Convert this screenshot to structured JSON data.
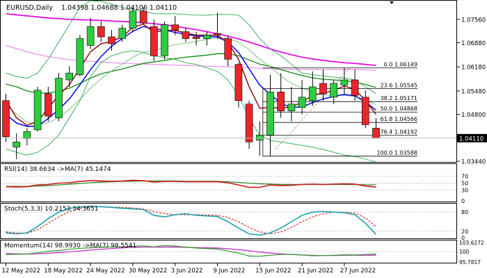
{
  "window": {
    "symbol_label": "EURUSD,Daily",
    "ohlc_label": "1.04398 1.04688 1.04106 1.04110"
  },
  "colors": {
    "bull": "#2ecc40",
    "bear": "#e8262b",
    "magenta_ma": "#e014e0",
    "pink_ma": "#f09af0",
    "green_ma": "#118811",
    "light_green_ma": "#7bc47b",
    "blue_ma": "#1010ee",
    "brown_ma": "#8b1010",
    "bollinger": "#27a84a",
    "rsi_red": "#cc1515",
    "rsi_green": "#2a8a2a",
    "stoch_main": "#1aa0b0",
    "stoch_signal": "#e03030",
    "mom_main": "#2a9a2a",
    "mom_signal": "#c020c0",
    "fib": "#000000"
  },
  "chart_data": {
    "type": "candlestick",
    "title": "EURUSD,Daily",
    "y_range": [
      1.0344,
      1.0808
    ],
    "price_ticks": [
      "1.07560",
      "1.06880",
      "1.06180",
      "1.05480",
      "1.04800",
      "1.04110",
      "1.03440"
    ],
    "current_price": "1.04110",
    "x_tick_labels": [
      "12 May 2022",
      "18 May 2022",
      "24 May 2022",
      "30 May 2022",
      "3 Jun 2022",
      "9 Jun 2022",
      "15 Jun 2022",
      "21 Jun 2022",
      "27 Jun 2022"
    ],
    "x_tick_index": [
      0,
      4,
      8,
      12,
      16,
      20,
      24,
      28,
      32
    ],
    "candles": [
      {
        "o": 1.052,
        "h": 1.054,
        "l": 1.04,
        "c": 1.0415
      },
      {
        "o": 1.0385,
        "h": 1.0425,
        "l": 1.035,
        "c": 1.04
      },
      {
        "o": 1.041,
        "h": 1.044,
        "l": 1.039,
        "c": 1.043
      },
      {
        "o": 1.0435,
        "h": 1.056,
        "l": 1.043,
        "c": 1.055
      },
      {
        "o": 1.054,
        "h": 1.056,
        "l": 1.046,
        "c": 1.0475
      },
      {
        "o": 1.047,
        "h": 1.06,
        "l": 1.046,
        "c": 1.0585
      },
      {
        "o": 1.058,
        "h": 1.062,
        "l": 1.056,
        "c": 1.06
      },
      {
        "o": 1.0595,
        "h": 1.071,
        "l": 1.059,
        "c": 1.07
      },
      {
        "o": 1.068,
        "h": 1.076,
        "l": 1.067,
        "c": 1.0735
      },
      {
        "o": 1.0735,
        "h": 1.075,
        "l": 1.069,
        "c": 1.0705
      },
      {
        "o": 1.0705,
        "h": 1.0725,
        "l": 1.0665,
        "c": 1.0685
      },
      {
        "o": 1.07,
        "h": 1.074,
        "l": 1.069,
        "c": 1.073
      },
      {
        "o": 1.073,
        "h": 1.079,
        "l": 1.072,
        "c": 1.078
      },
      {
        "o": 1.078,
        "h": 1.079,
        "l": 1.074,
        "c": 1.0745
      },
      {
        "o": 1.0735,
        "h": 1.0755,
        "l": 1.0635,
        "c": 1.065
      },
      {
        "o": 1.065,
        "h": 1.075,
        "l": 1.064,
        "c": 1.074
      },
      {
        "o": 1.074,
        "h": 1.0765,
        "l": 1.071,
        "c": 1.0725
      },
      {
        "o": 1.072,
        "h": 1.073,
        "l": 1.069,
        "c": 1.07
      },
      {
        "o": 1.0705,
        "h": 1.072,
        "l": 1.068,
        "c": 1.07
      },
      {
        "o": 1.07,
        "h": 1.072,
        "l": 1.068,
        "c": 1.071
      },
      {
        "o": 1.0715,
        "h": 1.0775,
        "l": 1.07,
        "c": 1.071
      },
      {
        "o": 1.07,
        "h": 1.071,
        "l": 1.062,
        "c": 1.064
      },
      {
        "o": 1.0625,
        "h": 1.063,
        "l": 1.05,
        "c": 1.052
      },
      {
        "o": 1.051,
        "h": 1.052,
        "l": 1.038,
        "c": 1.04
      },
      {
        "o": 1.0405,
        "h": 1.046,
        "l": 1.036,
        "c": 1.042
      },
      {
        "o": 1.042,
        "h": 1.0595,
        "l": 1.036,
        "c": 1.0545
      },
      {
        "o": 1.0545,
        "h": 1.06,
        "l": 1.047,
        "c": 1.049
      },
      {
        "o": 1.049,
        "h": 1.056,
        "l": 1.046,
        "c": 1.051
      },
      {
        "o": 1.05,
        "h": 1.058,
        "l": 1.048,
        "c": 1.053
      },
      {
        "o": 1.052,
        "h": 1.0605,
        "l": 1.0505,
        "c": 1.056
      },
      {
        "o": 1.057,
        "h": 1.061,
        "l": 1.052,
        "c": 1.054
      },
      {
        "o": 1.053,
        "h": 1.058,
        "l": 1.051,
        "c": 1.057
      },
      {
        "o": 1.0565,
        "h": 1.0615,
        "l": 1.054,
        "c": 1.058
      },
      {
        "o": 1.058,
        "h": 1.061,
        "l": 1.052,
        "c": 1.0535
      },
      {
        "o": 1.053,
        "h": 1.055,
        "l": 1.044,
        "c": 1.045
      },
      {
        "o": 1.044,
        "h": 1.0469,
        "l": 1.0411,
        "c": 1.0411
      }
    ],
    "series": [
      {
        "values": [
          1.0772,
          1.0769,
          1.0766,
          1.0763,
          1.076,
          1.0758,
          1.0756,
          1.0755,
          1.0754,
          1.0753,
          1.0751,
          1.075,
          1.0748,
          1.0746,
          1.0743,
          1.074,
          1.0736,
          1.0731,
          1.0726,
          1.072,
          1.0714,
          1.0707,
          1.0699,
          1.069,
          1.068,
          1.067,
          1.0661,
          1.0653,
          1.0646,
          1.0641,
          1.0637,
          1.0633,
          1.063,
          1.0628,
          1.0625,
          1.0622
        ]
      },
      {
        "values": [
          1.068,
          1.0671,
          1.0662,
          1.0654,
          1.0648,
          1.0643,
          1.0639,
          1.0636,
          1.0634,
          1.0632,
          1.063,
          1.0628,
          1.0627,
          1.0626,
          1.0625,
          1.0624,
          1.0623,
          1.0622,
          1.0621,
          1.062,
          1.0619,
          1.0618,
          1.0617,
          1.0616,
          1.0614,
          1.0612,
          1.0611,
          1.061,
          1.061,
          1.061,
          1.061,
          1.061,
          1.061,
          1.061,
          1.0609,
          1.0608
        ]
      },
      {
        "values": [
          1.0568,
          1.056,
          1.0548,
          1.0542,
          1.0542,
          1.0547,
          1.0556,
          1.057,
          1.0585,
          1.0598,
          1.0605,
          1.0612,
          1.062,
          1.0628,
          1.0632,
          1.0637,
          1.0642,
          1.0646,
          1.0649,
          1.0652,
          1.0656,
          1.0656,
          1.065,
          1.0638,
          1.0626,
          1.0619,
          1.061,
          1.0601,
          1.0593,
          1.0586,
          1.0582,
          1.058,
          1.0578,
          1.0574,
          1.0567,
          1.0558
        ]
      },
      {
        "values": [
          1.051,
          1.048,
          1.0458,
          1.045,
          1.0456,
          1.047,
          1.0494,
          1.0524,
          1.0556,
          1.0583,
          1.0606,
          1.0626,
          1.0646,
          1.066,
          1.0665,
          1.0675,
          1.0682,
          1.0687,
          1.0692,
          1.0698,
          1.0702,
          1.07,
          1.069,
          1.0668,
          1.064,
          1.0618,
          1.0592,
          1.057,
          1.0556,
          1.0546,
          1.0537,
          1.0535,
          1.0535,
          1.0532,
          1.0523,
          1.0508
        ]
      },
      {
        "values": [
          1.048,
          1.0455,
          1.0445,
          1.0446,
          1.0468,
          1.0494,
          1.0525,
          1.0566,
          1.061,
          1.0648,
          1.0678,
          1.07,
          1.0721,
          1.0735,
          1.0728,
          1.0725,
          1.0718,
          1.0712,
          1.0708,
          1.0706,
          1.0705,
          1.069,
          1.066,
          1.0612,
          1.0565,
          1.0538,
          1.0512,
          1.05,
          1.0502,
          1.0514,
          1.0525,
          1.0532,
          1.0538,
          1.0534,
          1.0516,
          1.0492
        ]
      },
      {
        "values": [
          1.052,
          1.047,
          1.0448,
          1.046,
          1.0498,
          1.0536,
          1.0566,
          1.0614,
          1.0662,
          1.0685,
          1.0692,
          1.0705,
          1.0733,
          1.0742,
          1.0718,
          1.0724,
          1.0724,
          1.0716,
          1.071,
          1.071,
          1.071,
          1.0688,
          1.064,
          1.056,
          1.0498,
          1.05,
          1.0498,
          1.0502,
          1.0515,
          1.0536,
          1.054,
          1.055,
          1.0562,
          1.0553,
          1.052,
          1.048
        ]
      },
      {
        "values": [
          1.06,
          1.059,
          1.0585,
          1.06,
          1.064,
          1.069,
          1.074,
          1.079,
          1.081,
          1.0808,
          1.08,
          1.079,
          1.0785,
          1.078,
          1.0772,
          1.0772,
          1.0772,
          1.077,
          1.0768,
          1.0768,
          1.077,
          1.077,
          1.0768,
          1.074,
          1.07,
          1.067,
          1.065,
          1.0625,
          1.06,
          1.0595,
          1.0592,
          1.0588,
          1.0585,
          1.058,
          1.056,
          1.054
        ]
      },
      {
        "values": [
          1.038,
          1.037,
          1.0362,
          1.037,
          1.039,
          1.042,
          1.047,
          1.052,
          1.059,
          1.063,
          1.065,
          1.066,
          1.0665,
          1.066,
          1.065,
          1.0645,
          1.064,
          1.063,
          1.0625,
          1.0615,
          1.0605,
          1.058,
          1.0535,
          1.047,
          1.042,
          1.0405,
          1.04,
          1.0395,
          1.039,
          1.0385,
          1.0378,
          1.037,
          1.0362,
          1.0358,
          1.035,
          1.0342
        ]
      }
    ],
    "fibonacci": [
      {
        "label": "0.0 1.06149",
        "price": 1.06149
      },
      {
        "label": "23.6 1.05545",
        "price": 1.05545
      },
      {
        "label": "38.2 1.05171",
        "price": 1.05171
      },
      {
        "label": "50.0 1.04868",
        "price": 1.04868
      },
      {
        "label": "61.8 1.04566",
        "price": 1.04566
      },
      {
        "label": "76.4 1.04192",
        "price": 1.04192
      },
      {
        "label": "100.0 1.03588",
        "price": 1.03588
      }
    ],
    "rsi": {
      "label": "RSI(14) 38.6634 ->MA(7) 45.1474",
      "range": [
        0,
        100
      ],
      "ticks": [
        "70",
        "50",
        "30",
        "0"
      ],
      "tick_values": [
        70,
        50,
        30,
        0
      ],
      "main": [
        40,
        39,
        40,
        45,
        46,
        50,
        51,
        55,
        57,
        56,
        55,
        56,
        58,
        57,
        53,
        55,
        55,
        54,
        54,
        54,
        54,
        51,
        45,
        38,
        38,
        45,
        43,
        44,
        46,
        47,
        46,
        47,
        48,
        47,
        42,
        38.66
      ],
      "signal": [
        41,
        41,
        41,
        42,
        43,
        45,
        47,
        49,
        51,
        53,
        54,
        55,
        55,
        56,
        56,
        56,
        56,
        55,
        55,
        55,
        55,
        54,
        52,
        50,
        48,
        47,
        46,
        46,
        46,
        46,
        46,
        46,
        46,
        46,
        45.5,
        45.15
      ]
    },
    "stoch": {
      "label": "Stoch(5,3,3) 10.2153 34.3651",
      "range": [
        0,
        100
      ],
      "ticks": [
        "80",
        "20",
        "0"
      ],
      "tick_values": [
        80,
        20,
        0
      ],
      "main": [
        15,
        12,
        15,
        35,
        60,
        80,
        92,
        96,
        98,
        97,
        95,
        92,
        90,
        88,
        70,
        65,
        72,
        75,
        70,
        68,
        66,
        50,
        30,
        12,
        8,
        15,
        30,
        50,
        70,
        80,
        82,
        80,
        78,
        72,
        45,
        10.22
      ],
      "signal": [
        18,
        15,
        14,
        25,
        45,
        65,
        82,
        92,
        96,
        97,
        96,
        95,
        93,
        90,
        82,
        75,
        72,
        72,
        72,
        71,
        70,
        63,
        50,
        32,
        18,
        12,
        18,
        32,
        50,
        65,
        75,
        80,
        80,
        77,
        62,
        34.37
      ]
    },
    "momentum": {
      "label": "Momentum(14) 98.9930 ->MA(7) 98.5541",
      "range": [
        95.7817,
        103.6272
      ],
      "ticks": [
        "103.6272",
        "100",
        "95.7817"
      ],
      "tick_values": [
        103.6272,
        100,
        95.7817
      ],
      "main": [
        98.8,
        98.9,
        99.0,
        99.5,
        100.1,
        100.4,
        100.9,
        101.3,
        101.5,
        101.7,
        101.9,
        101.9,
        102.1,
        102.3,
        101.9,
        102.4,
        102.2,
        101.8,
        101.4,
        101.2,
        101.0,
        100.2,
        99.4,
        98.2,
        98.1,
        98.5,
        98.8,
        98.9,
        98.6,
        98.3,
        98.4,
        98.5,
        98.7,
        98.6,
        98.8,
        98.99
      ],
      "signal": [
        99.2,
        99.1,
        99.0,
        99.1,
        99.3,
        99.6,
        99.9,
        100.2,
        100.6,
        100.9,
        101.2,
        101.5,
        101.7,
        101.8,
        101.8,
        101.8,
        101.8,
        101.7,
        101.6,
        101.5,
        101.4,
        101.1,
        100.8,
        100.3,
        99.8,
        99.4,
        99.1,
        98.8,
        98.6,
        98.5,
        98.4,
        98.4,
        98.5,
        98.5,
        98.5,
        98.55
      ]
    }
  }
}
